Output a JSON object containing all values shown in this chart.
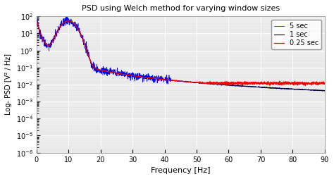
{
  "title": "PSD using Welch method for varying window sizes",
  "xlabel": "Frequency [Hz]",
  "ylabel": "Log- PSD [V² / Hz]",
  "xlim": [
    0,
    90
  ],
  "ylim_log": [
    -6,
    2
  ],
  "legend": [
    "0.25 sec",
    "1 sec",
    "5 sec"
  ],
  "legend_colors": [
    "red",
    "black",
    "blue"
  ],
  "bg_color": "#e8e8e8",
  "grid_color": "white",
  "seed": 42
}
